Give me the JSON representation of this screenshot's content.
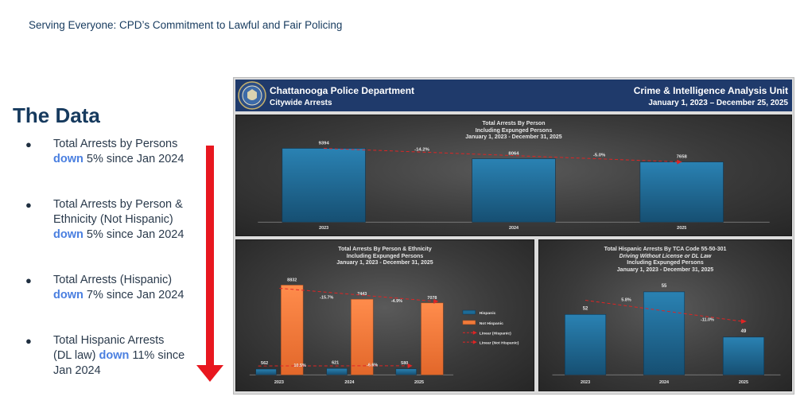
{
  "slide": {
    "subtitle": "Serving Everyone: CPD’s Commitment to Lawful and Fair Policing",
    "heading": "The Data"
  },
  "bullets": [
    {
      "line1": "Total Arrests by Persons",
      "emph": "down",
      "tail": " 5% since Jan 2024"
    },
    {
      "line1": "Total Arrests by Person &",
      "line2": "Ethnicity (Not Hispanic)",
      "emph": "down",
      "tail": " 5% since Jan 2024"
    },
    {
      "line1": "Total Arrests (Hispanic)",
      "emph": "down",
      "tail": " 7% since Jan 2024"
    },
    {
      "line1": "Total Hispanic Arrests",
      "line2a": "(DL law) ",
      "emph": "down",
      "line2b": " 11% since",
      "line3": "Jan 2024"
    }
  ],
  "report_header": {
    "department": "Chattanooga Police Department",
    "subtitle": "Citywide Arrests",
    "unit": "Crime & Intelligence Analysis Unit",
    "date_range": "January 1, 2023 – December 25, 2025",
    "seal_icon": "police-seal-icon"
  },
  "colors": {
    "blue_bar": "#1d6b97",
    "orange_bar": "#f07a3a",
    "trend": "#e02424",
    "arrow": "#e8171f",
    "header_bg": "#1f3a6b"
  },
  "chart_data": [
    {
      "type": "bar",
      "title": "Total Arrests By Person",
      "subtitle1": "Including Expunged Persons",
      "subtitle2": "January 1, 2023 - December 31, 2025",
      "categories": [
        "2023",
        "2024",
        "2025"
      ],
      "values": [
        9394,
        8064,
        7658
      ],
      "value_labels": [
        "9394",
        "8064",
        "7658"
      ],
      "changes": [
        "-14.2%",
        "-5.0%"
      ],
      "trendline": true,
      "ylim": [
        0,
        11000
      ]
    },
    {
      "type": "bar",
      "title": "Total Arrests By Person & Ethnicity",
      "subtitle1": "Including Expunged Persons",
      "subtitle2": "January 1, 2023 - December 31, 2025",
      "categories": [
        "2023",
        "2024",
        "2025"
      ],
      "series": [
        {
          "name": "Hispanic",
          "values": [
            562,
            621,
            580
          ],
          "labels": [
            "562",
            "621",
            "580"
          ]
        },
        {
          "name": "Not Hispanic",
          "values": [
            8832,
            7443,
            7078
          ],
          "labels": [
            "8832",
            "7443",
            "7078"
          ]
        }
      ],
      "changes_hispanic": [
        "10.5%",
        "-6.6%"
      ],
      "changes_not_hispanic": [
        "-15.7%",
        "-4.9%"
      ],
      "legend": [
        "Hispanic",
        "Not Hispanic",
        "Linear (Hispanic)",
        "Linear (Not Hispanic)"
      ],
      "legend_position": "right",
      "ylim": [
        0,
        9300
      ]
    },
    {
      "type": "bar",
      "title": "Total Hispanic Arrests By TCA Code 55-50-301",
      "subtitle1": "Driving Without License or DL Law",
      "subtitle2": "Including Expunged Persons",
      "subtitle3": "January 1, 2023 - December 31, 2025",
      "categories": [
        "2023",
        "2024",
        "2025"
      ],
      "values": [
        52,
        55,
        49
      ],
      "value_labels": [
        "52",
        "55",
        "49"
      ],
      "changes": [
        "5.8%",
        "-11.0%"
      ],
      "trendline": true,
      "ylim": [
        44,
        56
      ]
    }
  ]
}
